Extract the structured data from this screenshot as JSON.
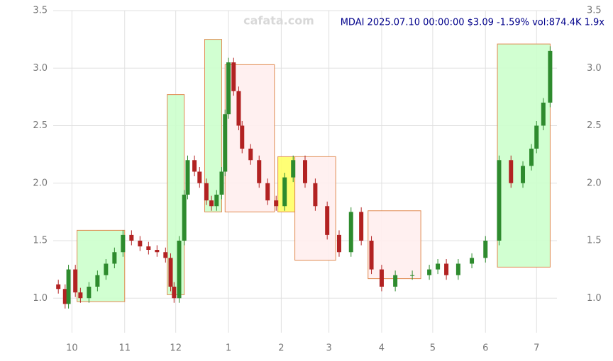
{
  "chart_data": {
    "type": "candlestick",
    "title": "MDAI 2025.07.10 00:00:00 $3.09 -1.59% vol:874.4K 1.9x",
    "watermark": "cafata.com",
    "x": [
      -8,
      -4,
      -2,
      2,
      5,
      10,
      15,
      20,
      25,
      30,
      35,
      40,
      45,
      50,
      55,
      58,
      60,
      63,
      66,
      68,
      72,
      75,
      79,
      82,
      85,
      88,
      90,
      92,
      95,
      98,
      100,
      105,
      110,
      115,
      120,
      125,
      130,
      137,
      143,
      150,
      157,
      164,
      170,
      176,
      182,
      190,
      200,
      210,
      215,
      220,
      227,
      235,
      243,
      251,
      258,
      265,
      270,
      273,
      277,
      281
    ],
    "open": [
      1.12,
      1.08,
      0.95,
      1.25,
      1.05,
      1.0,
      1.1,
      1.2,
      1.3,
      1.4,
      1.55,
      1.5,
      1.45,
      1.42,
      1.4,
      1.35,
      1.1,
      1.0,
      1.5,
      1.9,
      2.2,
      2.1,
      2.0,
      1.85,
      1.8,
      1.9,
      2.1,
      2.6,
      3.05,
      2.8,
      2.5,
      2.3,
      2.2,
      2.0,
      1.85,
      1.8,
      2.05,
      2.2,
      2.0,
      1.8,
      1.55,
      1.4,
      1.75,
      1.5,
      1.25,
      1.1,
      1.2,
      1.2,
      1.25,
      1.3,
      1.2,
      1.3,
      1.35,
      1.5,
      2.2,
      2.0,
      2.15,
      2.3,
      2.5,
      2.7
    ],
    "high": [
      1.16,
      1.12,
      1.29,
      1.29,
      1.09,
      1.14,
      1.24,
      1.34,
      1.44,
      1.59,
      1.59,
      1.54,
      1.49,
      1.46,
      1.44,
      1.39,
      1.14,
      1.54,
      1.94,
      2.24,
      2.24,
      2.14,
      2.04,
      1.89,
      1.94,
      2.14,
      2.64,
      3.09,
      3.09,
      2.84,
      2.54,
      2.34,
      2.24,
      2.04,
      1.89,
      2.09,
      2.24,
      2.24,
      2.04,
      1.84,
      1.59,
      1.79,
      1.79,
      1.54,
      1.29,
      1.24,
      1.24,
      1.29,
      1.34,
      1.34,
      1.34,
      1.39,
      1.54,
      2.24,
      2.24,
      2.19,
      2.34,
      2.54,
      2.74,
      3.19
    ],
    "low": [
      1.04,
      0.91,
      0.91,
      1.01,
      0.96,
      0.96,
      1.06,
      1.16,
      1.26,
      1.36,
      1.46,
      1.41,
      1.38,
      1.36,
      1.31,
      1.06,
      0.96,
      0.96,
      1.46,
      1.86,
      2.06,
      1.96,
      1.81,
      1.76,
      1.76,
      1.86,
      2.06,
      2.56,
      2.76,
      2.46,
      2.26,
      2.16,
      1.96,
      1.81,
      1.76,
      1.76,
      2.01,
      1.96,
      1.76,
      1.51,
      1.36,
      1.36,
      1.46,
      1.21,
      1.06,
      1.06,
      1.16,
      1.16,
      1.21,
      1.16,
      1.16,
      1.26,
      1.31,
      1.46,
      1.96,
      1.96,
      2.11,
      2.26,
      2.46,
      2.66
    ],
    "close": [
      1.08,
      0.95,
      1.25,
      1.05,
      1.0,
      1.1,
      1.2,
      1.3,
      1.4,
      1.55,
      1.5,
      1.45,
      1.42,
      1.4,
      1.35,
      1.1,
      1.0,
      1.5,
      1.9,
      2.2,
      2.1,
      2.0,
      1.85,
      1.8,
      1.9,
      2.1,
      2.6,
      3.05,
      2.8,
      2.5,
      2.3,
      2.2,
      2.0,
      1.85,
      1.8,
      2.05,
      2.2,
      2.0,
      1.8,
      1.55,
      1.4,
      1.75,
      1.5,
      1.25,
      1.1,
      1.2,
      1.2,
      1.25,
      1.3,
      1.2,
      1.3,
      1.35,
      1.5,
      2.2,
      2.0,
      2.15,
      2.3,
      2.5,
      2.7,
      3.15
    ],
    "up_color": "#2e8b2e",
    "down_color": "#b22222",
    "boxes": [
      {
        "x0": 3,
        "x1": 31,
        "y0": 0.97,
        "y1": 1.59,
        "color": "#ccffcc"
      },
      {
        "x0": 56,
        "x1": 66,
        "y0": 1.03,
        "y1": 2.77,
        "color": "#ccffcc"
      },
      {
        "x0": 78,
        "x1": 88,
        "y0": 1.75,
        "y1": 3.25,
        "color": "#ccffcc"
      },
      {
        "x0": 90,
        "x1": 119,
        "y0": 1.75,
        "y1": 3.03,
        "color": "#ffeeee"
      },
      {
        "x0": 121,
        "x1": 131,
        "y0": 1.75,
        "y1": 2.23,
        "color": "#ffff66"
      },
      {
        "x0": 131,
        "x1": 155,
        "y0": 1.33,
        "y1": 2.23,
        "color": "#ffeeee"
      },
      {
        "x0": 174,
        "x1": 205,
        "y0": 1.17,
        "y1": 1.76,
        "color": "#ffeeee"
      },
      {
        "x0": 250,
        "x1": 281,
        "y0": 1.27,
        "y1": 3.21,
        "color": "#ccffcc"
      }
    ],
    "xlim": [
      -11,
      285
    ],
    "xticks": [
      {
        "value": 0,
        "label": "10"
      },
      {
        "value": 31,
        "label": "11"
      },
      {
        "value": 61,
        "label": "12"
      },
      {
        "value": 92,
        "label": "1"
      },
      {
        "value": 123,
        "label": "2"
      },
      {
        "value": 151,
        "label": "3"
      },
      {
        "value": 182,
        "label": "4"
      },
      {
        "value": 212,
        "label": "5"
      },
      {
        "value": 243,
        "label": "6"
      },
      {
        "value": 273,
        "label": "7"
      }
    ],
    "ylim": [
      0.7,
      3.5
    ],
    "yticks": [
      {
        "value": 1,
        "label": "1.0"
      },
      1.5,
      {
        "value": 2,
        "label": "2.0"
      },
      2.5,
      {
        "value": 3,
        "label": "3.0"
      },
      3.5
    ],
    "grid": true
  }
}
